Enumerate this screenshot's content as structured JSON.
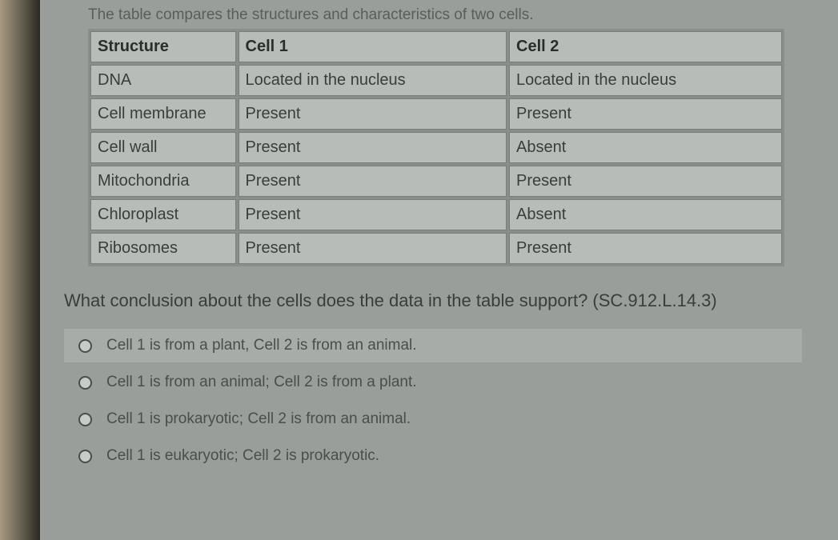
{
  "intro": "The table compares the structures and characteristics of two cells.",
  "table": {
    "headers": [
      "Structure",
      "Cell 1",
      "Cell 2"
    ],
    "rows": [
      [
        "DNA",
        "Located in the nucleus",
        "Located in the nucleus"
      ],
      [
        "Cell membrane",
        "Present",
        "Present"
      ],
      [
        "Cell wall",
        "Present",
        "Absent"
      ],
      [
        "Mitochondria",
        "Present",
        "Present"
      ],
      [
        "Chloroplast",
        "Present",
        "Absent"
      ],
      [
        "Ribosomes",
        "Present",
        "Present"
      ]
    ],
    "col_widths": [
      "165px",
      "305px",
      "310px"
    ],
    "border_color": "#7a7e7a",
    "cell_bg": "#b8bcb8",
    "text_color": "#3a3e3a",
    "header_weight": "bold",
    "font_size": 20
  },
  "question": "What conclusion about the cells does the data in the table support? (SC.912.L.14.3)",
  "options": [
    {
      "label": "Cell 1 is from a plant, Cell 2 is from an animal.",
      "highlighted": true
    },
    {
      "label": "Cell 1 is from an animal; Cell 2 is from a plant.",
      "highlighted": false
    },
    {
      "label": "Cell 1 is prokaryotic; Cell 2 is from an animal.",
      "highlighted": false
    },
    {
      "label": "Cell 1 is eukaryotic; Cell 2 is prokaryotic.",
      "highlighted": false
    }
  ],
  "colors": {
    "page_bg": "#9a9e9a",
    "highlight_bg": "#a8aca8",
    "intro_text": "#5a5e5a",
    "question_text": "#3a3e3a",
    "option_text": "#4a4e4a",
    "radio_border": "#4a4e4a",
    "radio_fill": "#c8ccc8"
  },
  "typography": {
    "font_family": "Arial",
    "intro_size": 19,
    "question_size": 22,
    "option_size": 19
  }
}
